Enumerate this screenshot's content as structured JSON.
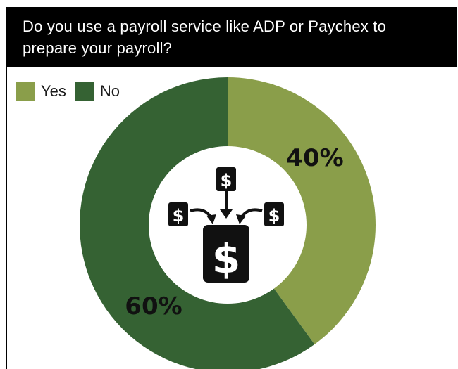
{
  "title": "Do you use a payroll service like ADP or Paychex to prepare your payroll?",
  "colors": {
    "yes": "#8a9e4a",
    "no": "#356233",
    "title_bg": "#000000",
    "title_text": "#ffffff"
  },
  "chart_data": {
    "type": "pie",
    "style": "donut",
    "title": "Do you use a payroll service like ADP or Paychex to prepare your payroll?",
    "legend_position": "top-left",
    "slices": [
      {
        "label": "Yes",
        "value": 40,
        "display": "40%",
        "color": "#8a9e4a"
      },
      {
        "label": "No",
        "value": 60,
        "display": "60%",
        "color": "#356233"
      }
    ],
    "center_icon": "payroll-dollar-icon"
  },
  "legend": {
    "items": [
      {
        "label": "Yes",
        "color": "#8a9e4a"
      },
      {
        "label": "No",
        "color": "#356233"
      }
    ]
  }
}
